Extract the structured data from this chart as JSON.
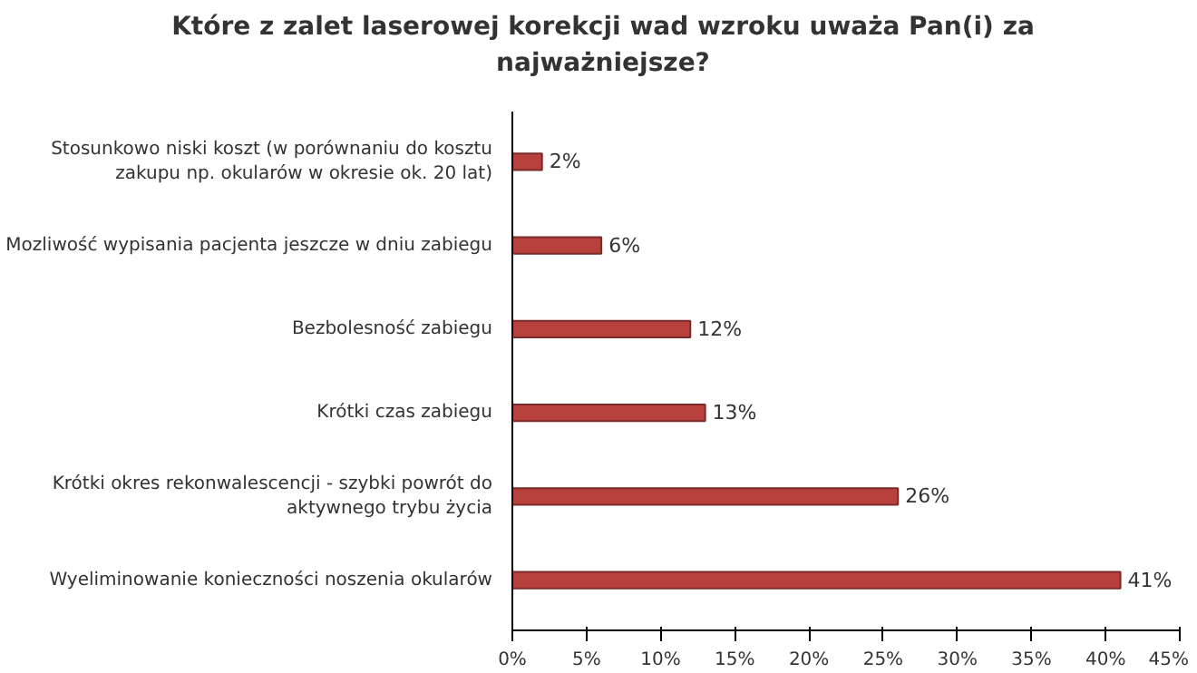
{
  "chart_data": {
    "type": "bar",
    "orientation": "horizontal",
    "title": "Które z zalet laserowej korekcji wad wzroku uważa Pan(i) za najważniejsze?",
    "categories": [
      "Stosunkowo niski koszt (w porównaniu do kosztu zakupu np. okularów w okresie ok. 20 lat)",
      "Mozliwość wypisania pacjenta jeszcze w dniu zabiegu",
      "Bezbolesność zabiegu",
      "Krótki czas zabiegu",
      "Krótki okres rekonwalescencji - szybki powrót do aktywnego trybu życia",
      "Wyeliminowanie konieczności noszenia okularów"
    ],
    "values": [
      2,
      6,
      12,
      13,
      26,
      41
    ],
    "value_labels": [
      "2%",
      "6%",
      "12%",
      "13%",
      "26%",
      "41%"
    ],
    "color": "#b8403d",
    "xlim": [
      0,
      45
    ],
    "xticks": [
      {
        "value": 0,
        "label": "0%"
      },
      {
        "value": 5,
        "label": "5%"
      },
      {
        "value": 10,
        "label": "10%"
      },
      {
        "value": 15,
        "label": "15%"
      },
      {
        "value": 20,
        "label": "20%"
      },
      {
        "value": 25,
        "label": "25%"
      },
      {
        "value": 30,
        "label": "30%"
      },
      {
        "value": 35,
        "label": "35%"
      },
      {
        "value": 40,
        "label": "40%"
      },
      {
        "value": 45,
        "label": "45%"
      }
    ],
    "grid": false
  }
}
